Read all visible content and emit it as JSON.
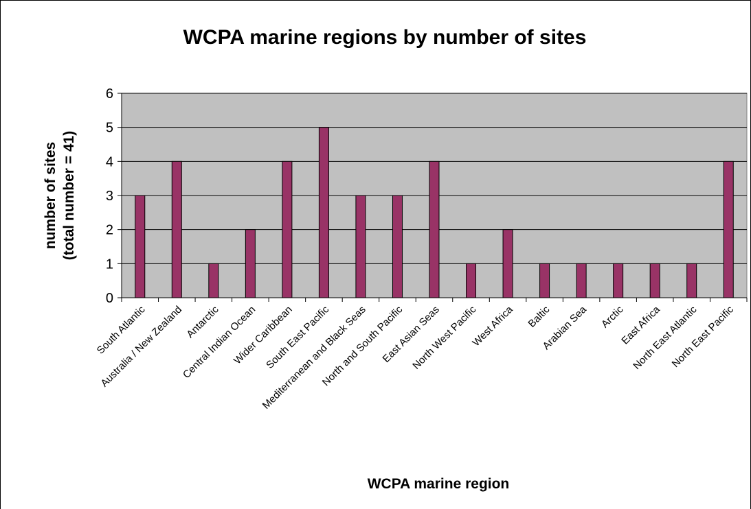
{
  "chart_data": {
    "type": "bar",
    "title": "WCPA marine regions by number of sites",
    "xlabel": "WCPA marine region",
    "ylabel": [
      "number of sites",
      "(total number = 41)"
    ],
    "categories": [
      "South Atlantic",
      "Australia / New Zealand",
      "Antarctic",
      "Central Indian Ocean",
      "Wider Caribbean",
      "South East Pacific",
      "Mediterranean and Black Seas",
      "North and South Pacific",
      "East Asian Seas",
      "North West Pacific",
      "West Africa",
      "Baltic",
      "Arabian Sea",
      "Arctic",
      "East Africa",
      "North East Atlantic",
      "North East Pacific"
    ],
    "values": [
      3,
      4,
      1,
      2,
      4,
      5,
      3,
      3,
      4,
      1,
      2,
      1,
      1,
      1,
      1,
      1,
      4
    ],
    "ylim": [
      0,
      6
    ],
    "yticks": [
      "0",
      "1",
      "2",
      "3",
      "4",
      "5",
      "6"
    ],
    "grid": true,
    "legend": "none",
    "colors": {
      "bar": "#993366",
      "plot_background": "#c0c0c0",
      "gridline": "#000000"
    }
  }
}
